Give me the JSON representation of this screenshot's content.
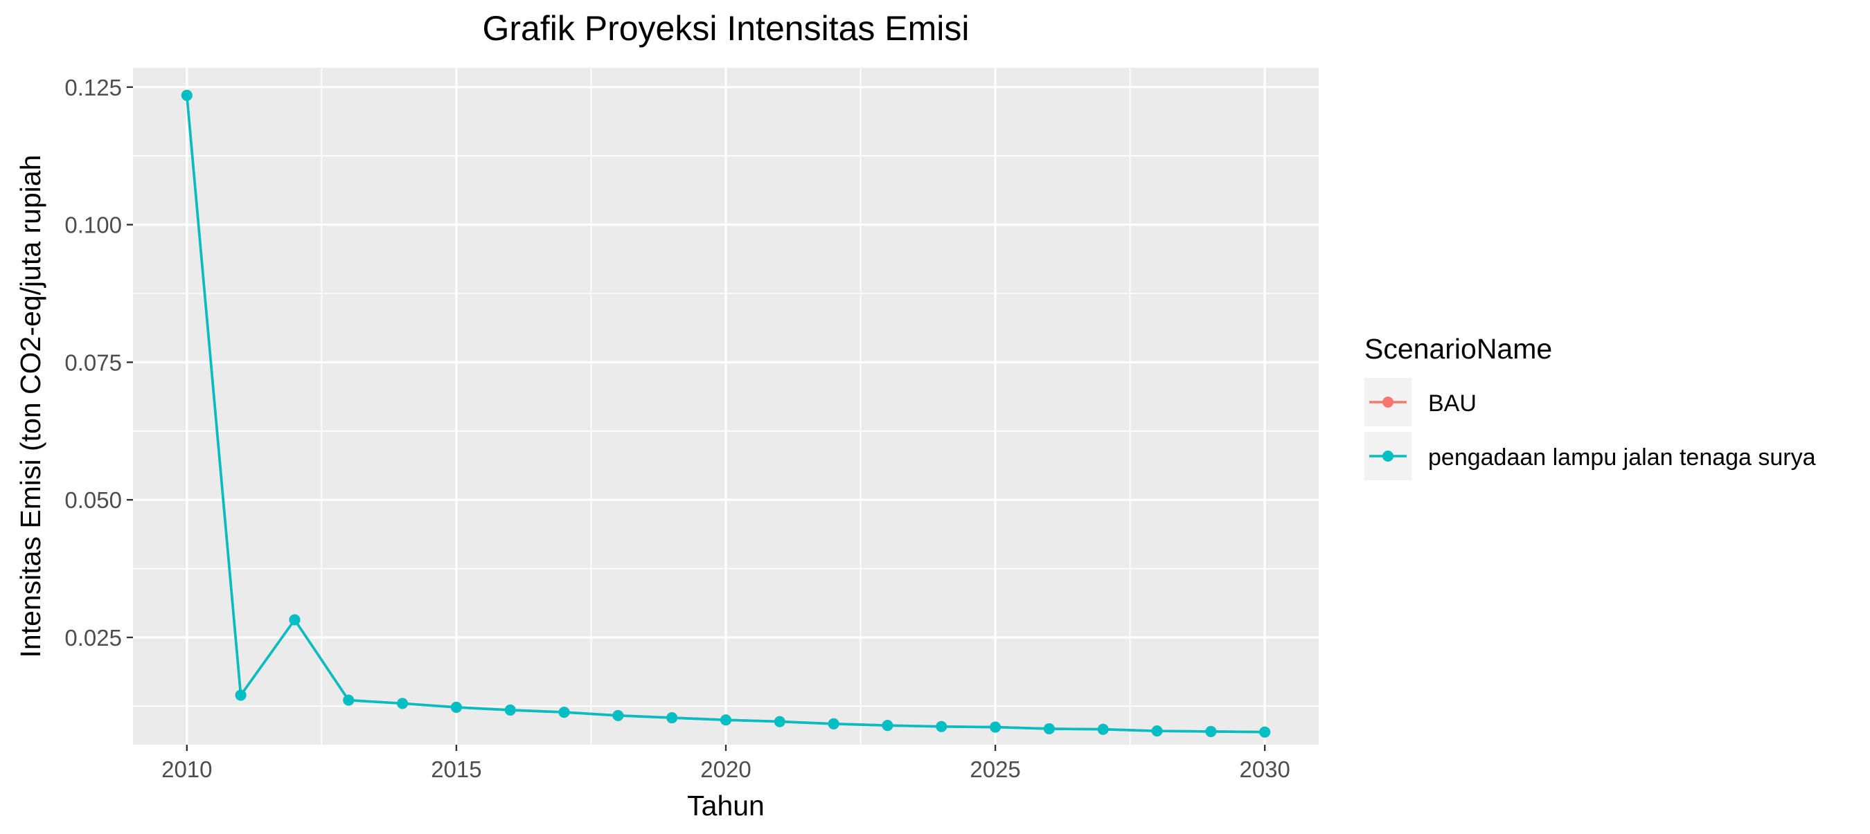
{
  "chart_data": {
    "type": "line",
    "title": "Grafik Proyeksi Intensitas Emisi",
    "xlabel": "Tahun",
    "ylabel": "Intensitas Emisi (ton CO2-eq/juta rupiah",
    "xlim": [
      2009,
      2031
    ],
    "ylim": [
      0.0055,
      0.1285
    ],
    "x_ticks": [
      2010,
      2015,
      2020,
      2025,
      2030
    ],
    "y_ticks": [
      0.025,
      0.05,
      0.075,
      0.1,
      0.125
    ],
    "y_tick_labels": [
      "0.025",
      "0.050",
      "0.075",
      "0.100",
      "0.125"
    ],
    "grid": true,
    "legend": {
      "title": "ScenarioName",
      "placement": "right"
    },
    "x": [
      2010,
      2011,
      2012,
      2013,
      2014,
      2015,
      2016,
      2017,
      2018,
      2019,
      2020,
      2021,
      2022,
      2023,
      2024,
      2025,
      2026,
      2027,
      2028,
      2029,
      2030
    ],
    "series": [
      {
        "name": "BAU",
        "color": "#F8766D",
        "values": [
          0.1235,
          0.0145,
          0.0282,
          0.0136,
          0.013,
          0.0123,
          0.0118,
          0.0114,
          0.0108,
          0.0104,
          0.01,
          0.0097,
          0.0093,
          0.009,
          0.0088,
          0.0087,
          0.0084,
          0.0083,
          0.008,
          0.0079,
          0.0078
        ]
      },
      {
        "name": "pengadaan lampu jalan tenaga surya",
        "color": "#00BFC4",
        "values": [
          0.1235,
          0.0145,
          0.0282,
          0.0136,
          0.013,
          0.0123,
          0.0118,
          0.0114,
          0.0108,
          0.0104,
          0.01,
          0.0097,
          0.0093,
          0.009,
          0.0088,
          0.0087,
          0.0084,
          0.0083,
          0.008,
          0.0079,
          0.0078
        ]
      }
    ]
  }
}
